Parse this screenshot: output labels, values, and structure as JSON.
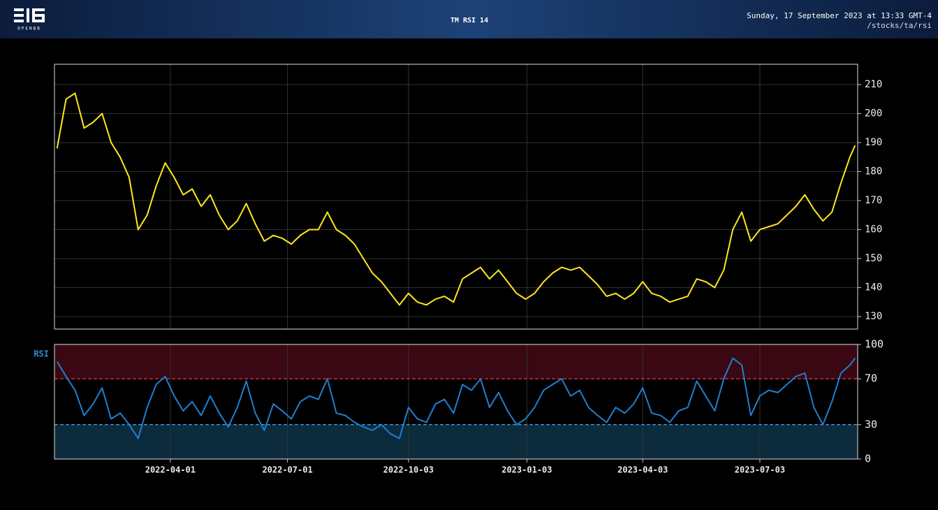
{
  "header": {
    "title": "TM RSI 14",
    "timestamp": "Sunday, 17 September 2023 at 13:33 GMT-4",
    "command": "/stocks/ta/rsi",
    "logo": "OPENBB"
  },
  "chart_data": [
    {
      "type": "line",
      "x": [
        "2022-01-03",
        "2022-01-10",
        "2022-01-17",
        "2022-01-24",
        "2022-01-31",
        "2022-02-07",
        "2022-02-14",
        "2022-02-21",
        "2022-02-28",
        "2022-03-07",
        "2022-03-14",
        "2022-03-21",
        "2022-03-28",
        "2022-04-04",
        "2022-04-11",
        "2022-04-18",
        "2022-04-25",
        "2022-05-02",
        "2022-05-09",
        "2022-05-16",
        "2022-05-23",
        "2022-05-30",
        "2022-06-06",
        "2022-06-13",
        "2022-06-20",
        "2022-06-27",
        "2022-07-04",
        "2022-07-11",
        "2022-07-18",
        "2022-07-25",
        "2022-08-01",
        "2022-08-08",
        "2022-08-15",
        "2022-08-22",
        "2022-08-29",
        "2022-09-05",
        "2022-09-12",
        "2022-09-19",
        "2022-09-26",
        "2022-10-03",
        "2022-10-10",
        "2022-10-17",
        "2022-10-24",
        "2022-10-31",
        "2022-11-07",
        "2022-11-14",
        "2022-11-21",
        "2022-11-28",
        "2022-12-05",
        "2022-12-12",
        "2022-12-19",
        "2022-12-26",
        "2023-01-02",
        "2023-01-09",
        "2023-01-16",
        "2023-01-23",
        "2023-01-30",
        "2023-02-06",
        "2023-02-13",
        "2023-02-20",
        "2023-02-27",
        "2023-03-06",
        "2023-03-13",
        "2023-03-20",
        "2023-03-27",
        "2023-04-03",
        "2023-04-10",
        "2023-04-17",
        "2023-04-24",
        "2023-05-01",
        "2023-05-08",
        "2023-05-15",
        "2023-05-22",
        "2023-05-29",
        "2023-06-05",
        "2023-06-12",
        "2023-06-19",
        "2023-06-26",
        "2023-07-03",
        "2023-07-10",
        "2023-07-17",
        "2023-07-24",
        "2023-07-31",
        "2023-08-07",
        "2023-08-14",
        "2023-08-21",
        "2023-08-28",
        "2023-09-04",
        "2023-09-11",
        "2023-09-15"
      ],
      "series": [
        {
          "color": "#ffe81a",
          "values": [
            188,
            205,
            207,
            195,
            197,
            200,
            190,
            185,
            178,
            160,
            165,
            175,
            183,
            178,
            172,
            174,
            168,
            172,
            165,
            160,
            163,
            169,
            162,
            156,
            158,
            157,
            155,
            158,
            160,
            160,
            166,
            160,
            158,
            155,
            150,
            145,
            142,
            138,
            134,
            138,
            135,
            134,
            136,
            137,
            135,
            143,
            145,
            147,
            143,
            146,
            142,
            138,
            136,
            138,
            142,
            145,
            147,
            146,
            147,
            144,
            141,
            137,
            138,
            136,
            138,
            142,
            138,
            137,
            135,
            136,
            137,
            143,
            142,
            140,
            146,
            160,
            166,
            156,
            160,
            161,
            162,
            165,
            168,
            172,
            167,
            163,
            166,
            176,
            185,
            189
          ]
        }
      ],
      "xlim": [
        "2022-01-01",
        "2023-09-17"
      ],
      "ylim": [
        125.7,
        217.0
      ],
      "yticks": [
        130,
        140,
        150,
        160,
        170,
        180,
        190,
        200,
        210
      ],
      "grid": true
    },
    {
      "type": "line",
      "ylabel": "RSI",
      "x": [
        "2022-01-03",
        "2022-01-10",
        "2022-01-17",
        "2022-01-24",
        "2022-01-31",
        "2022-02-07",
        "2022-02-14",
        "2022-02-21",
        "2022-02-28",
        "2022-03-07",
        "2022-03-14",
        "2022-03-21",
        "2022-03-28",
        "2022-04-04",
        "2022-04-11",
        "2022-04-18",
        "2022-04-25",
        "2022-05-02",
        "2022-05-09",
        "2022-05-16",
        "2022-05-23",
        "2022-05-30",
        "2022-06-06",
        "2022-06-13",
        "2022-06-20",
        "2022-06-27",
        "2022-07-04",
        "2022-07-11",
        "2022-07-18",
        "2022-07-25",
        "2022-08-01",
        "2022-08-08",
        "2022-08-15",
        "2022-08-22",
        "2022-08-29",
        "2022-09-05",
        "2022-09-12",
        "2022-09-19",
        "2022-09-26",
        "2022-10-03",
        "2022-10-10",
        "2022-10-17",
        "2022-10-24",
        "2022-10-31",
        "2022-11-07",
        "2022-11-14",
        "2022-11-21",
        "2022-11-28",
        "2022-12-05",
        "2022-12-12",
        "2022-12-19",
        "2022-12-26",
        "2023-01-02",
        "2023-01-09",
        "2023-01-16",
        "2023-01-23",
        "2023-01-30",
        "2023-02-06",
        "2023-02-13",
        "2023-02-20",
        "2023-02-27",
        "2023-03-06",
        "2023-03-13",
        "2023-03-20",
        "2023-03-27",
        "2023-04-03",
        "2023-04-10",
        "2023-04-17",
        "2023-04-24",
        "2023-05-01",
        "2023-05-08",
        "2023-05-15",
        "2023-05-22",
        "2023-05-29",
        "2023-06-05",
        "2023-06-12",
        "2023-06-19",
        "2023-06-26",
        "2023-07-03",
        "2023-07-10",
        "2023-07-17",
        "2023-07-24",
        "2023-07-31",
        "2023-08-07",
        "2023-08-14",
        "2023-08-21",
        "2023-08-28",
        "2023-09-04",
        "2023-09-11",
        "2023-09-15"
      ],
      "series": [
        {
          "color": "#1f7fd0",
          "values": [
            85,
            72,
            60,
            38,
            48,
            62,
            35,
            40,
            30,
            18,
            45,
            65,
            72,
            55,
            42,
            50,
            38,
            55,
            40,
            28,
            45,
            68,
            40,
            25,
            48,
            42,
            35,
            50,
            55,
            52,
            70,
            40,
            38,
            32,
            28,
            25,
            30,
            22,
            18,
            45,
            35,
            32,
            48,
            52,
            40,
            65,
            60,
            70,
            45,
            58,
            42,
            30,
            35,
            45,
            60,
            65,
            70,
            55,
            60,
            45,
            38,
            32,
            45,
            40,
            48,
            62,
            40,
            38,
            32,
            42,
            45,
            68,
            55,
            42,
            70,
            88,
            82,
            38,
            55,
            60,
            58,
            65,
            72,
            75,
            45,
            30,
            50,
            75,
            82,
            88
          ]
        }
      ],
      "xlim": [
        "2022-01-01",
        "2023-09-17"
      ],
      "xticks": [
        "2022-04-01",
        "2022-07-01",
        "2022-10-03",
        "2023-01-03",
        "2023-04-03",
        "2023-07-03"
      ],
      "ylim": [
        0,
        100
      ],
      "yticks": [
        0,
        30,
        70,
        100
      ],
      "thresholds": [
        {
          "value": 70,
          "color": "#c03048",
          "fill": "#3a0812"
        },
        {
          "value": 30,
          "color": "#3b8fd0",
          "fill": "#0c2b3d"
        }
      ],
      "grid": true
    }
  ]
}
